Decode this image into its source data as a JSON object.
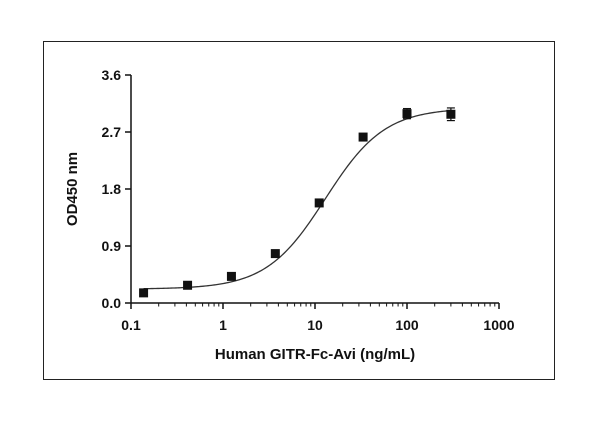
{
  "chart_data": {
    "type": "scatter",
    "title": "",
    "xlabel": "Human GITR-Fc-Avi (ng/mL)",
    "ylabel": "OD450 nm",
    "xscale": "log",
    "xlim": [
      0.1,
      1000
    ],
    "ylim": [
      0.0,
      3.6
    ],
    "xticks": [
      0.1,
      1,
      10,
      100,
      1000
    ],
    "xtick_labels": [
      "0.1",
      "1",
      "10",
      "100",
      "1000"
    ],
    "yticks": [
      0.0,
      0.9,
      1.8,
      2.7,
      3.6
    ],
    "ytick_labels": [
      "0.0",
      "0.9",
      "1.8",
      "2.7",
      "3.6"
    ],
    "grid": false,
    "legend": "none",
    "marker": "filled-square",
    "colors": {
      "series": "#111111",
      "axes": "#111111",
      "fit": "#333333"
    },
    "series": [
      {
        "x": [
          0.137,
          0.412,
          1.235,
          3.704,
          11.11,
          33.33,
          100,
          300
        ],
        "y": [
          0.16,
          0.28,
          0.42,
          0.78,
          1.58,
          2.62,
          2.99,
          2.98
        ],
        "error": [
          0.02,
          0.04,
          0.03,
          0.03,
          0.03,
          0.03,
          0.08,
          0.1
        ]
      }
    ],
    "fit": {
      "model": "4PL",
      "bottom": 0.22,
      "top": 3.08,
      "ec50": 13,
      "hill": 1.35
    }
  }
}
